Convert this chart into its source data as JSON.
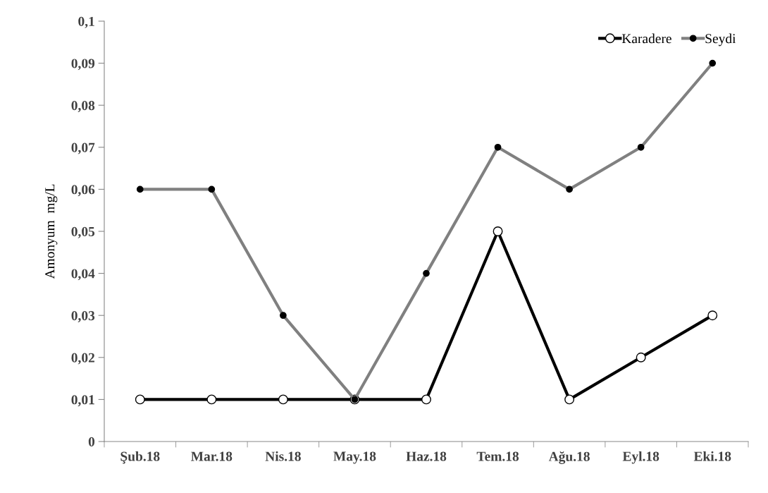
{
  "chart_data": {
    "type": "line",
    "ylabel": "Amonyum  mg/L",
    "categories": [
      "Şub.18",
      "Mar.18",
      "Nis.18",
      "May.18",
      "Haz.18",
      "Tem.18",
      "Ağu.18",
      "Eyl.18",
      "Eki.18"
    ],
    "series": [
      {
        "name": "Karadere",
        "color": "#000000",
        "values": [
          0.01,
          0.01,
          0.01,
          0.01,
          0.01,
          0.05,
          0.01,
          0.02,
          0.03
        ]
      },
      {
        "name": "Seydi",
        "color": "#808080",
        "values": [
          0.06,
          0.06,
          0.03,
          0.01,
          0.04,
          0.07,
          0.06,
          0.07,
          0.09
        ]
      }
    ],
    "ylim": [
      0,
      0.1
    ],
    "yticks": [
      {
        "value": 0,
        "label": "0"
      },
      {
        "value": 0.01,
        "label": "0,01"
      },
      {
        "value": 0.02,
        "label": "0,02"
      },
      {
        "value": 0.03,
        "label": "0,03"
      },
      {
        "value": 0.04,
        "label": "0,04"
      },
      {
        "value": 0.05,
        "label": "0,05"
      },
      {
        "value": 0.06,
        "label": "0,06"
      },
      {
        "value": 0.07,
        "label": "0,07"
      },
      {
        "value": 0.08,
        "label": "0,08"
      },
      {
        "value": 0.09,
        "label": "0,09"
      },
      {
        "value": 0.1,
        "label": "0,1"
      }
    ],
    "grid": false,
    "legend": "top right",
    "marker": "circle",
    "line_style": "solid"
  }
}
